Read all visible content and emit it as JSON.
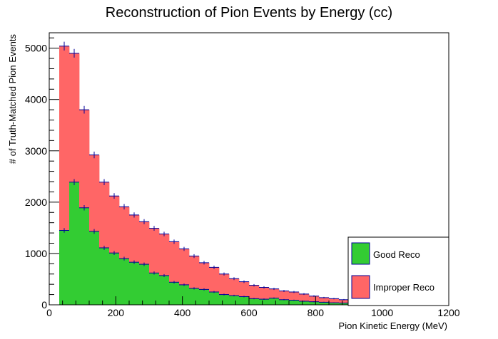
{
  "chart_data": {
    "type": "histogram",
    "title": "Reconstruction of Pion Events by Energy (cc)",
    "xlabel": "Pion Kinetic Energy (MeV)",
    "ylabel": "# of Truth-Matched Pion Events",
    "xlim": [
      0,
      1200
    ],
    "ylim": [
      0,
      5300
    ],
    "xticks": [
      0,
      200,
      400,
      600,
      800,
      1000,
      1200
    ],
    "yticks": [
      0,
      1000,
      2000,
      3000,
      4000,
      5000
    ],
    "bin_edges": [
      30,
      60,
      90,
      120,
      150,
      180,
      210,
      240,
      270,
      300,
      330,
      360,
      390,
      420,
      450,
      480,
      510,
      540,
      570,
      600,
      630,
      660,
      690,
      720,
      750,
      780,
      810,
      840,
      870,
      900,
      930,
      960,
      990,
      1020,
      1050,
      1080,
      1110,
      1140,
      1170,
      1200
    ],
    "stacked": true,
    "series": [
      {
        "name": "Good Reco",
        "color": "#33cc33",
        "values": [
          1450,
          2390,
          1890,
          1430,
          1110,
          1010,
          900,
          830,
          790,
          620,
          570,
          440,
          390,
          320,
          300,
          250,
          200,
          180,
          160,
          120,
          110,
          130,
          100,
          90,
          70,
          60,
          50,
          40,
          35,
          30,
          25,
          20,
          18,
          15,
          12,
          10,
          8,
          6,
          5
        ]
      },
      {
        "name": "Improper Reco",
        "color": "#ff6666",
        "values": [
          3590,
          2510,
          1910,
          1490,
          1280,
          1110,
          1010,
          920,
          830,
          870,
          810,
          790,
          700,
          630,
          520,
          480,
          400,
          330,
          290,
          260,
          230,
          180,
          170,
          160,
          140,
          110,
          90,
          80,
          65,
          55,
          45,
          40,
          32,
          25,
          18,
          15,
          12,
          9,
          7
        ]
      }
    ],
    "legend_position": "bottom-right",
    "error_markers": true,
    "marker_color": "#000099"
  }
}
